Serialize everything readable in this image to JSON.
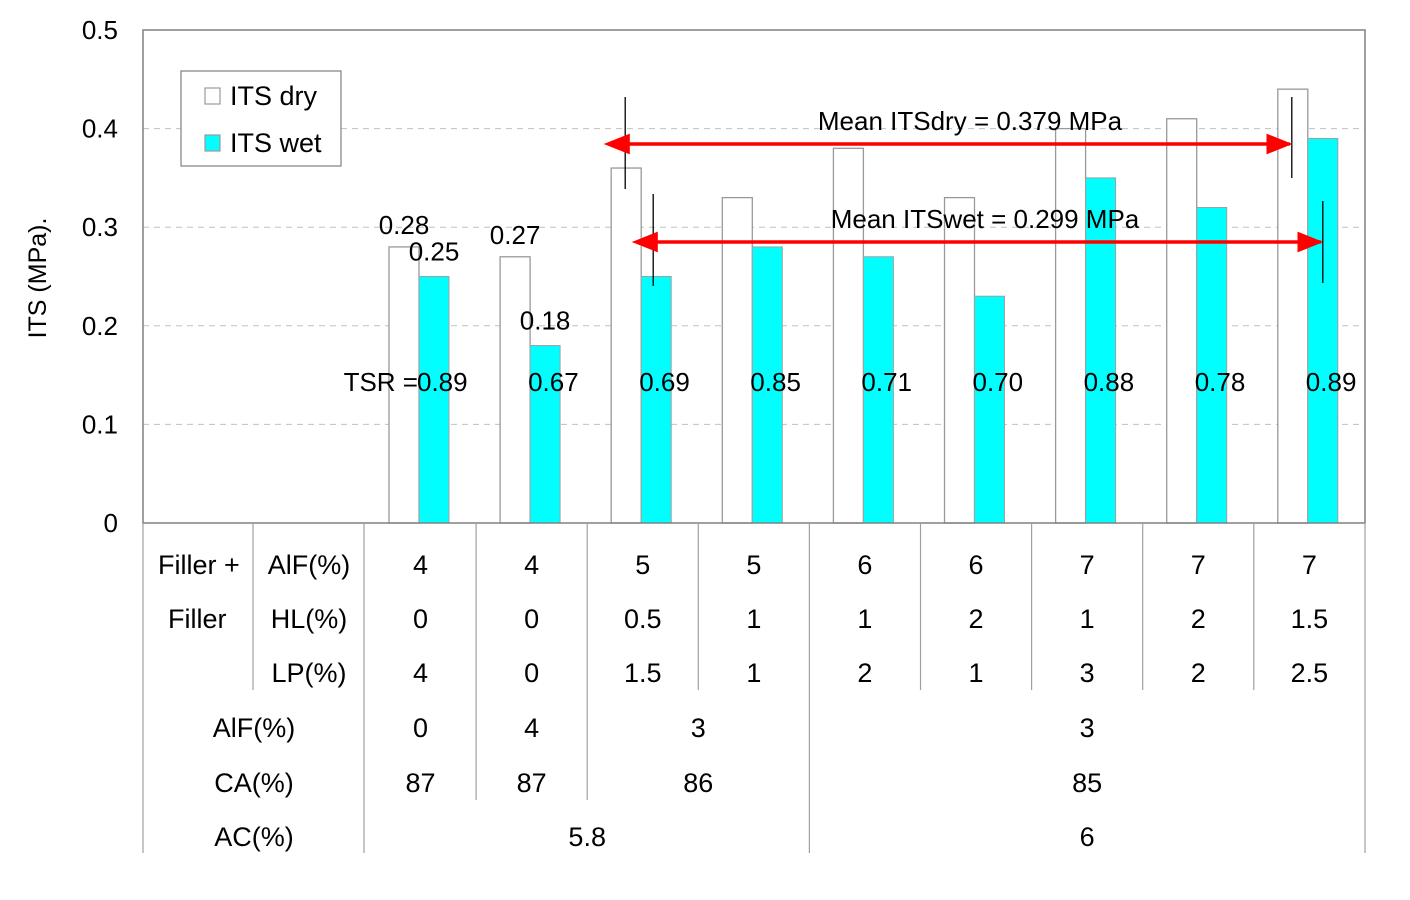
{
  "chart_data": {
    "type": "bar",
    "title": "",
    "xlabel": "",
    "ylabel": "ITS (MPa).",
    "ylim": [
      0,
      0.5
    ],
    "yticks": [
      0,
      0.1,
      0.2,
      0.3,
      0.4,
      0.5
    ],
    "ytick_labels": [
      "0",
      "0.1",
      "0.2",
      "0.3",
      "0.4",
      "0.5"
    ],
    "grid": true,
    "legend_position": "top-left",
    "colors": {
      "dry_fill": "#ffffff",
      "dry_edge": "#999999",
      "wet_fill": "#00ffff",
      "arrow": "#ff0000",
      "grid": "#c0c0c0"
    },
    "series": [
      {
        "name": "ITS dry",
        "values": [
          0.28,
          0.27,
          0.36,
          0.33,
          0.38,
          0.33,
          0.4,
          0.41,
          0.44
        ]
      },
      {
        "name": "ITS wet",
        "values": [
          0.25,
          0.18,
          0.25,
          0.28,
          0.27,
          0.23,
          0.35,
          0.32,
          0.39
        ]
      }
    ],
    "data_labels": {
      "dry": [
        "0.28",
        "0.27"
      ],
      "wet": [
        "0.25",
        "0.18"
      ]
    },
    "tsr_prefix": "TSR = ",
    "tsr_values": [
      "0.89",
      "0.67",
      "0.69",
      "0.85",
      "0.71",
      "0.70",
      "0.88",
      "0.78",
      "0.89"
    ],
    "mean_lines": [
      {
        "label": "Mean ITSdry = 0.379 MPa",
        "from_index": 2,
        "to_index": 8,
        "series": "dry"
      },
      {
        "label": "Mean ITSwet = 0.299 MPa",
        "from_index": 2,
        "to_index": 8,
        "series": "wet"
      }
    ]
  },
  "table": {
    "filler_plus_label": "Filler +",
    "filler_label": "Filler",
    "rows": [
      {
        "label": "AlF(%)",
        "values": [
          "4",
          "4",
          "5",
          "5",
          "6",
          "6",
          "7",
          "7",
          "7"
        ]
      },
      {
        "label": "HL(%)",
        "values": [
          "0",
          "0",
          "0.5",
          "1",
          "1",
          "2",
          "1",
          "2",
          "1.5"
        ]
      },
      {
        "label": "LP(%)",
        "values": [
          "4",
          "0",
          "1.5",
          "1",
          "2",
          "1",
          "3",
          "2",
          "2.5"
        ]
      }
    ],
    "merged_rows": [
      {
        "label": "AlF(%)",
        "cells": [
          {
            "span": [
              0,
              0
            ],
            "value": "0"
          },
          {
            "span": [
              1,
              1
            ],
            "value": "4"
          },
          {
            "span": [
              2,
              3
            ],
            "value": "3"
          },
          {
            "span": [
              4,
              8
            ],
            "value": "3"
          }
        ]
      },
      {
        "label": "CA(%)",
        "cells": [
          {
            "span": [
              0,
              0
            ],
            "value": "87"
          },
          {
            "span": [
              1,
              1
            ],
            "value": "87"
          },
          {
            "span": [
              2,
              3
            ],
            "value": "86"
          },
          {
            "span": [
              4,
              8
            ],
            "value": "85"
          }
        ]
      },
      {
        "label": "AC(%)",
        "cells": [
          {
            "span": [
              0,
              3
            ],
            "value": "5.8"
          },
          {
            "span": [
              4,
              8
            ],
            "value": "6"
          }
        ]
      }
    ]
  }
}
